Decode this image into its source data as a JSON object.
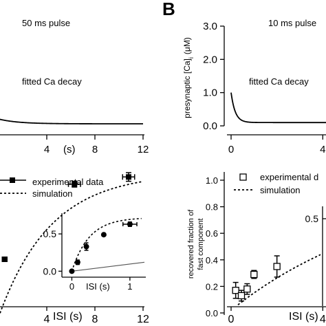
{
  "panel_labels": {
    "b": "B"
  },
  "chart_data": [
    {
      "id": "a_top",
      "type": "line",
      "annotations": [
        "50 ms pulse",
        "fitted Ca decay"
      ],
      "xlabel": "",
      "ylabel": "",
      "x_unit": "(s)",
      "xticks": [
        "4",
        "8",
        "12"
      ],
      "xtick_values": [
        4,
        8,
        12
      ],
      "xlim": [
        0,
        12
      ],
      "ylim": [
        0,
        3.0
      ],
      "series": [
        {
          "decay": {
            "peak": 0.2,
            "baseline": 0.06,
            "tau": 1.6
          }
        }
      ]
    },
    {
      "id": "b_top",
      "type": "line",
      "annotations": [
        "10 ms pulse",
        "fitted Ca decay"
      ],
      "ylabel": "presynaptic [Ca]i (μM)",
      "ylabel_parts": {
        "pre": "presynaptic [Ca]",
        "sub": "i",
        "unit": "(μM)"
      },
      "xticks": [
        "0",
        "4"
      ],
      "xtick_values": [
        0,
        4
      ],
      "yticks": [
        "0.0",
        "1.0",
        "2.0",
        "3.0"
      ],
      "ytick_values": [
        0,
        1,
        2,
        3
      ],
      "xlim": [
        0,
        12
      ],
      "ylim": [
        0,
        3.0
      ],
      "series": [
        {
          "decay": {
            "peak": 1.0,
            "baseline": 0.1,
            "tau": 0.18
          }
        }
      ]
    },
    {
      "id": "a_bottom",
      "type": "scatter",
      "legend": [
        "experimental data",
        "simulation"
      ],
      "xlabel": "ISI (s)",
      "xticks": [
        "4",
        "8",
        "12"
      ],
      "xtick_values": [
        4,
        8,
        12
      ],
      "xlim": [
        0,
        12
      ],
      "ylim": [
        0,
        1.0
      ],
      "series": [
        {
          "name": "experimental data",
          "marker": "filled-square",
          "points": [
            {
              "x": 0.5,
              "y": 0.3,
              "xerr": 0.2
            },
            {
              "x": 6.3,
              "y": 0.82,
              "xerr": 0.5,
              "yerr": 0.02
            },
            {
              "x": 10.8,
              "y": 0.87,
              "xerr": 0.5,
              "yerr": 0.03
            }
          ]
        },
        {
          "name": "simulation",
          "style": "dashed",
          "curve": {
            "base": -0.1,
            "amp": 1.0,
            "tau": 4.3
          }
        }
      ],
      "inset": {
        "xlabel": "ISI (s)",
        "xticks": [
          "0",
          "1"
        ],
        "xtick_values": [
          0,
          1
        ],
        "yticks": [
          "0.0",
          "0.5"
        ],
        "ytick_values": [
          0,
          0.5
        ],
        "xlim": [
          -0.1,
          1.25
        ],
        "ylim": [
          -0.08,
          0.75
        ],
        "points": [
          {
            "x": 0.0,
            "y": 0.0
          },
          {
            "x": 0.1,
            "y": 0.12,
            "yerr": 0.03
          },
          {
            "x": 0.25,
            "y": 0.33,
            "yerr": 0.05
          },
          {
            "x": 0.55,
            "y": 0.49
          },
          {
            "x": 1.0,
            "y": 0.63,
            "xerr": 0.12,
            "yerr": 0.03
          }
        ],
        "fit": {
          "amp": 0.72,
          "tau": 0.3
        },
        "line": {
          "x0": 0.0,
          "y0": 0.0,
          "x1": 1.25,
          "y1": 0.12
        }
      }
    },
    {
      "id": "b_bottom",
      "type": "scatter",
      "legend": [
        "experimental d",
        "simulation"
      ],
      "ylabel": "recovered fraction of fast component",
      "ylabel_lines": [
        "recovered fraction of",
        "fast component"
      ],
      "xlabel": "ISI (s)",
      "xticks": [
        "0",
        "4"
      ],
      "xtick_values": [
        0,
        4
      ],
      "yticks": [
        "0.0",
        "0.2",
        "0.4",
        "0.6",
        "0.8",
        "1.0"
      ],
      "ytick_values": [
        0,
        0.2,
        0.4,
        0.6,
        0.8,
        1.0
      ],
      "xlim": [
        0,
        12
      ],
      "ylim": [
        0,
        1.0
      ],
      "series": [
        {
          "name": "experimental d",
          "marker": "open-square",
          "points": [
            {
              "x": 0.2,
              "y": 0.17,
              "yerr": 0.06
            },
            {
              "x": 0.45,
              "y": 0.13,
              "yerr": 0.04
            },
            {
              "x": 0.7,
              "y": 0.18,
              "yerr": 0.04
            },
            {
              "x": 1.0,
              "y": 0.29,
              "yerr": 0.03
            },
            {
              "x": 2.0,
              "y": 0.35,
              "yerr": 0.08
            },
            {
              "x": 6.1,
              "y": 0.6,
              "yerr": 0.04
            }
          ]
        },
        {
          "name": "simulation",
          "style": "dashed",
          "curve": {
            "base": 0.02,
            "amp": 0.98,
            "tau": 7.0
          }
        }
      ],
      "inset": {
        "yticks": [
          "0.5"
        ],
        "ytick_values": [
          0.5
        ]
      }
    }
  ]
}
